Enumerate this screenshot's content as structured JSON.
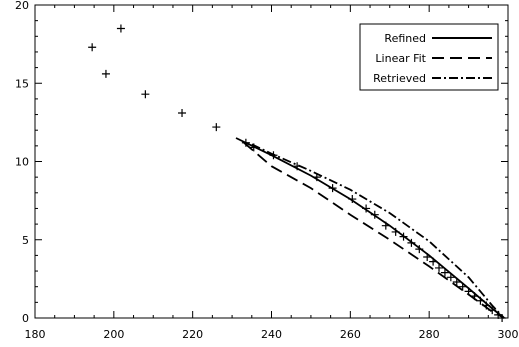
{
  "chart_data": {
    "type": "scatter",
    "xlim": [
      180,
      300
    ],
    "ylim": [
      0,
      20
    ],
    "x_ticks": [
      "180",
      "200",
      "220",
      "240",
      "260",
      "280",
      "300"
    ],
    "y_ticks": [
      "0",
      "5",
      "10",
      "15",
      "20"
    ],
    "grid": false,
    "legend_position": "top-right",
    "legend": [
      "Refined",
      "Linear Fit",
      "Retrieved"
    ],
    "points": [
      {
        "x": 194.5,
        "y": 17.3
      },
      {
        "x": 198,
        "y": 15.6
      },
      {
        "x": 201.8,
        "y": 18.5
      },
      {
        "x": 208,
        "y": 14.3
      },
      {
        "x": 217.3,
        "y": 13.1
      },
      {
        "x": 226,
        "y": 12.2
      },
      {
        "x": 233.5,
        "y": 11.2
      },
      {
        "x": 235.5,
        "y": 10.9
      },
      {
        "x": 240.5,
        "y": 10.4
      },
      {
        "x": 246.5,
        "y": 9.7
      },
      {
        "x": 251.5,
        "y": 9.0
      },
      {
        "x": 255.5,
        "y": 8.3
      },
      {
        "x": 260.5,
        "y": 7.6
      },
      {
        "x": 264,
        "y": 7.0
      },
      {
        "x": 266.2,
        "y": 6.6
      },
      {
        "x": 269,
        "y": 5.9
      },
      {
        "x": 271.5,
        "y": 5.5
      },
      {
        "x": 273.5,
        "y": 5.2
      },
      {
        "x": 275.5,
        "y": 4.8
      },
      {
        "x": 277.5,
        "y": 4.4
      },
      {
        "x": 279.5,
        "y": 3.9
      },
      {
        "x": 281,
        "y": 3.6
      },
      {
        "x": 282.5,
        "y": 3.2
      },
      {
        "x": 284,
        "y": 2.9
      },
      {
        "x": 285.5,
        "y": 2.6
      },
      {
        "x": 287,
        "y": 2.3
      },
      {
        "x": 288.5,
        "y": 2.0
      },
      {
        "x": 290,
        "y": 1.7
      },
      {
        "x": 291.5,
        "y": 1.4
      },
      {
        "x": 293,
        "y": 1.1
      },
      {
        "x": 294.5,
        "y": 0.8
      },
      {
        "x": 296,
        "y": 0.5
      },
      {
        "x": 297.5,
        "y": 0.2
      },
      {
        "x": 298.5,
        "y": 0.0
      }
    ],
    "series": [
      {
        "name": "Refined",
        "style": "solid",
        "x": [
          231,
          240,
          250,
          260,
          270,
          280,
          290,
          296,
          299
        ],
        "y": [
          11.5,
          10.4,
          9.1,
          7.6,
          5.9,
          4.0,
          1.9,
          0.6,
          0.0
        ]
      },
      {
        "name": "Linear Fit",
        "style": "dashed",
        "x": [
          233,
          240,
          250,
          260,
          270,
          280,
          290,
          296,
          299
        ],
        "y": [
          11.2,
          9.7,
          8.3,
          6.6,
          5.0,
          3.3,
          1.5,
          0.4,
          0.0
        ]
      },
      {
        "name": "Retrieved",
        "style": "dashdot",
        "x": [
          235,
          240,
          250,
          260,
          270,
          280,
          290,
          296,
          299
        ],
        "y": [
          11.1,
          10.5,
          9.4,
          8.2,
          6.7,
          4.9,
          2.6,
          0.8,
          0.0
        ]
      }
    ]
  }
}
